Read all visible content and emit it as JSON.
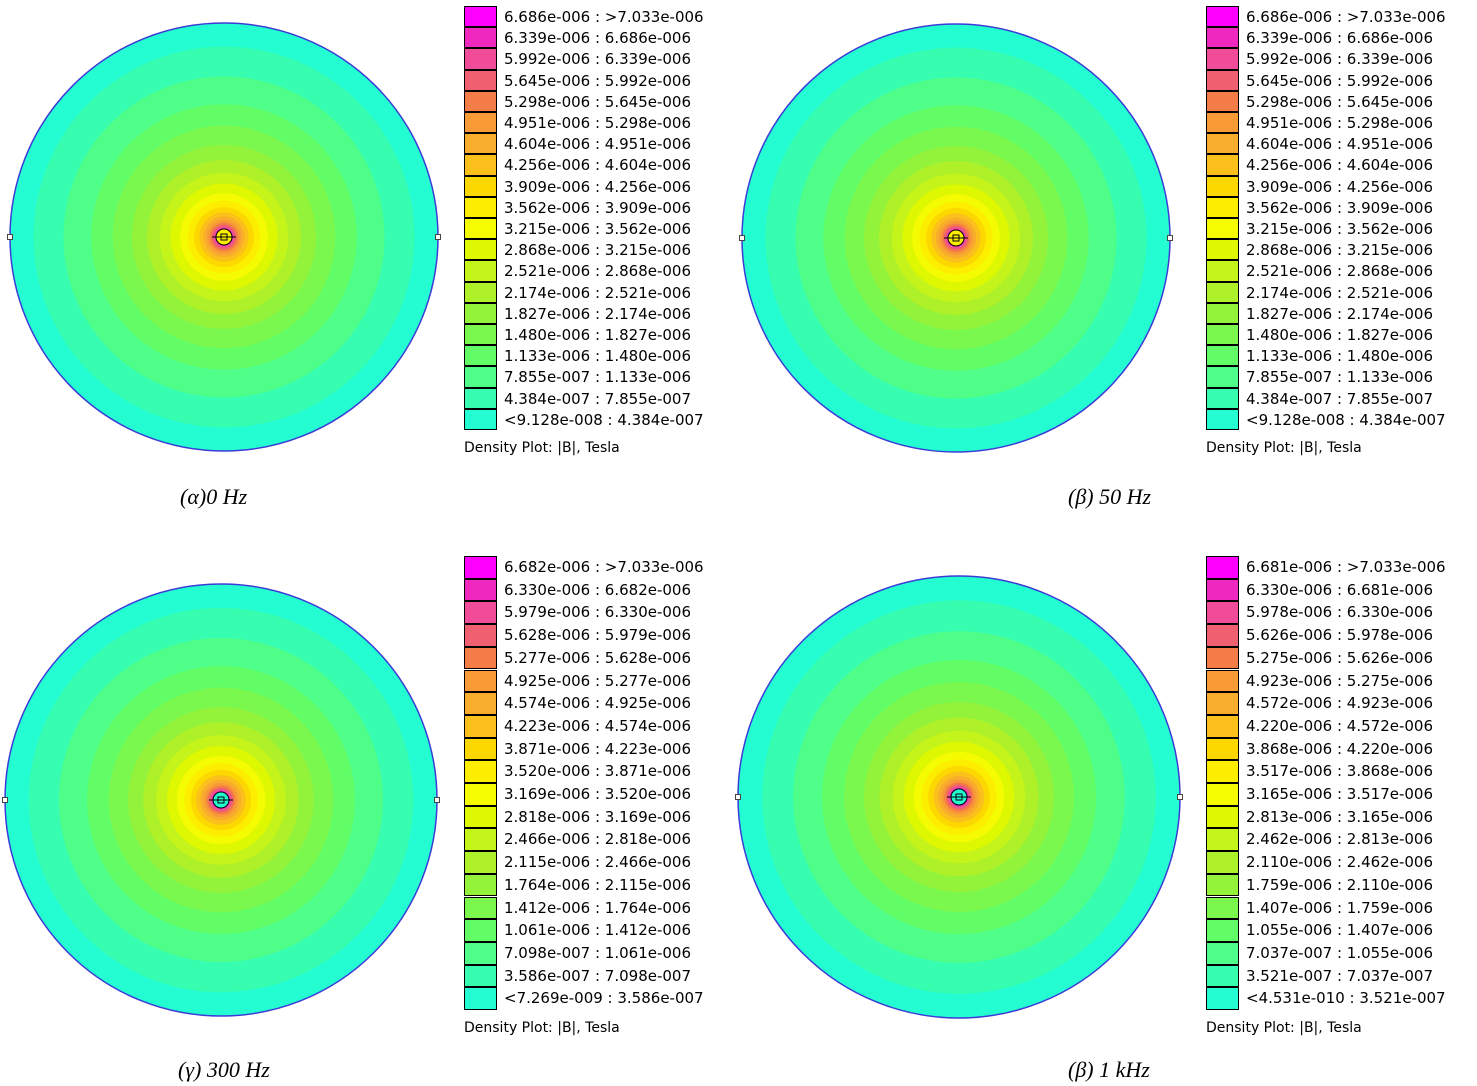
{
  "colors": [
    "#ff00ff",
    "#ef28c0",
    "#f04c9a",
    "#ef6070",
    "#f47c47",
    "#f89a36",
    "#f8ad2c",
    "#fbc01c",
    "#fdd800",
    "#fdee00",
    "#f5fb00",
    "#ddf800",
    "#c4f41a",
    "#aef129",
    "#93f33a",
    "#7bf84e",
    "#62fd66",
    "#4ffe88",
    "#36fdb0",
    "#24fdd2",
    "#00ffff"
  ],
  "panels": [
    {
      "id": "a",
      "caption": "(α)0 Hz",
      "legend_title": "Density Plot: |B|, Tesla",
      "ranges": [
        "6.686e-006 : >7.033e-006",
        "6.339e-006 : 6.686e-006",
        "5.992e-006 : 6.339e-006",
        "5.645e-006 : 5.992e-006",
        "5.298e-006 : 5.645e-006",
        "4.951e-006 : 5.298e-006",
        "4.604e-006 : 4.951e-006",
        "4.256e-006 : 4.604e-006",
        "3.909e-006 : 4.256e-006",
        "3.562e-006 : 3.909e-006",
        "3.215e-006 : 3.562e-006",
        "2.868e-006 : 3.215e-006",
        "2.521e-006 : 2.868e-006",
        "2.174e-006 : 2.521e-006",
        "1.827e-006 : 2.174e-006",
        "1.480e-006 : 1.827e-006",
        "1.133e-006 : 1.480e-006",
        "7.855e-007 : 1.133e-006",
        "4.384e-007 : 7.855e-007",
        "<9.128e-008 : 4.384e-007"
      ]
    },
    {
      "id": "b",
      "caption": "(β) 50 Hz",
      "legend_title": "Density Plot: |B|, Tesla",
      "ranges": [
        "6.686e-006 : >7.033e-006",
        "6.339e-006 : 6.686e-006",
        "5.992e-006 : 6.339e-006",
        "5.645e-006 : 5.992e-006",
        "5.298e-006 : 5.645e-006",
        "4.951e-006 : 5.298e-006",
        "4.604e-006 : 4.951e-006",
        "4.256e-006 : 4.604e-006",
        "3.909e-006 : 4.256e-006",
        "3.562e-006 : 3.909e-006",
        "3.215e-006 : 3.562e-006",
        "2.868e-006 : 3.215e-006",
        "2.521e-006 : 2.868e-006",
        "2.174e-006 : 2.521e-006",
        "1.827e-006 : 2.174e-006",
        "1.480e-006 : 1.827e-006",
        "1.133e-006 : 1.480e-006",
        "7.855e-007 : 1.133e-006",
        "4.384e-007 : 7.855e-007",
        "<9.128e-008 : 4.384e-007"
      ]
    },
    {
      "id": "c",
      "caption": "(γ) 300 Hz",
      "legend_title": "Density Plot: |B|, Tesla",
      "ranges": [
        "6.682e-006 : >7.033e-006",
        "6.330e-006 : 6.682e-006",
        "5.979e-006 : 6.330e-006",
        "5.628e-006 : 5.979e-006",
        "5.277e-006 : 5.628e-006",
        "4.925e-006 : 5.277e-006",
        "4.574e-006 : 4.925e-006",
        "4.223e-006 : 4.574e-006",
        "3.871e-006 : 4.223e-006",
        "3.520e-006 : 3.871e-006",
        "3.169e-006 : 3.520e-006",
        "2.818e-006 : 3.169e-006",
        "2.466e-006 : 2.818e-006",
        "2.115e-006 : 2.466e-006",
        "1.764e-006 : 2.115e-006",
        "1.412e-006 : 1.764e-006",
        "1.061e-006 : 1.412e-006",
        "7.098e-007 : 1.061e-006",
        "3.586e-007 : 7.098e-007",
        "<7.269e-009 : 3.586e-007"
      ]
    },
    {
      "id": "d",
      "caption": "(β) 1 kHz",
      "legend_title": "Density Plot: |B|, Tesla",
      "ranges": [
        "6.681e-006 : >7.033e-006",
        "6.330e-006 : 6.681e-006",
        "5.978e-006 : 6.330e-006",
        "5.626e-006 : 5.978e-006",
        "5.275e-006 : 5.626e-006",
        "4.923e-006 : 5.275e-006",
        "4.572e-006 : 4.923e-006",
        "4.220e-006 : 4.572e-006",
        "3.868e-006 : 4.220e-006",
        "3.517e-006 : 3.868e-006",
        "3.165e-006 : 3.517e-006",
        "2.813e-006 : 3.165e-006",
        "2.462e-006 : 2.813e-006",
        "2.110e-006 : 2.462e-006",
        "1.759e-006 : 2.110e-006",
        "1.407e-006 : 1.759e-006",
        "1.055e-006 : 1.407e-006",
        "7.037e-007 : 1.055e-006",
        "3.521e-007 : 7.037e-007",
        "<4.531e-010 : 3.521e-007"
      ]
    }
  ],
  "chart_data": [
    {
      "type": "heatmap",
      "quantity": "|B|",
      "unit": "Tesla",
      "frequency": "0 Hz",
      "max": 7.033e-06,
      "min": 9.128e-08,
      "levels": [
        6.686e-06,
        6.339e-06,
        5.992e-06,
        5.645e-06,
        5.298e-06,
        4.951e-06,
        4.604e-06,
        4.256e-06,
        3.909e-06,
        3.562e-06,
        3.215e-06,
        2.868e-06,
        2.521e-06,
        2.174e-06,
        1.827e-06,
        1.48e-06,
        1.133e-06,
        7.855e-07,
        4.384e-07,
        9.128e-08
      ],
      "pattern": "radial, maximum near central conductor decreasing outward"
    },
    {
      "type": "heatmap",
      "quantity": "|B|",
      "unit": "Tesla",
      "frequency": "50 Hz",
      "max": 7.033e-06,
      "min": 9.128e-08,
      "levels": [
        6.686e-06,
        6.339e-06,
        5.992e-06,
        5.645e-06,
        5.298e-06,
        4.951e-06,
        4.604e-06,
        4.256e-06,
        3.909e-06,
        3.562e-06,
        3.215e-06,
        2.868e-06,
        2.521e-06,
        2.174e-06,
        1.827e-06,
        1.48e-06,
        1.133e-06,
        7.855e-07,
        4.384e-07,
        9.128e-08
      ],
      "pattern": "radial, maximum near central conductor decreasing outward"
    },
    {
      "type": "heatmap",
      "quantity": "|B|",
      "unit": "Tesla",
      "frequency": "300 Hz",
      "max": 7.033e-06,
      "min": 7.269e-09,
      "levels": [
        6.682e-06,
        6.33e-06,
        5.979e-06,
        5.628e-06,
        5.277e-06,
        4.925e-06,
        4.574e-06,
        4.223e-06,
        3.871e-06,
        3.52e-06,
        3.169e-06,
        2.818e-06,
        2.466e-06,
        2.115e-06,
        1.764e-06,
        1.412e-06,
        1.061e-06,
        7.098e-07,
        3.586e-07,
        7.269e-09
      ],
      "pattern": "radial, maximum near central conductor decreasing outward"
    },
    {
      "type": "heatmap",
      "quantity": "|B|",
      "unit": "Tesla",
      "frequency": "1 kHz",
      "max": 7.033e-06,
      "min": 4.531e-10,
      "levels": [
        6.681e-06,
        6.33e-06,
        5.978e-06,
        5.626e-06,
        5.275e-06,
        4.923e-06,
        4.572e-06,
        4.22e-06,
        3.868e-06,
        3.517e-06,
        3.165e-06,
        2.813e-06,
        2.462e-06,
        2.11e-06,
        1.759e-06,
        1.407e-06,
        1.055e-06,
        7.037e-07,
        3.521e-07,
        4.531e-10
      ],
      "pattern": "radial, maximum near central conductor decreasing outward"
    }
  ]
}
